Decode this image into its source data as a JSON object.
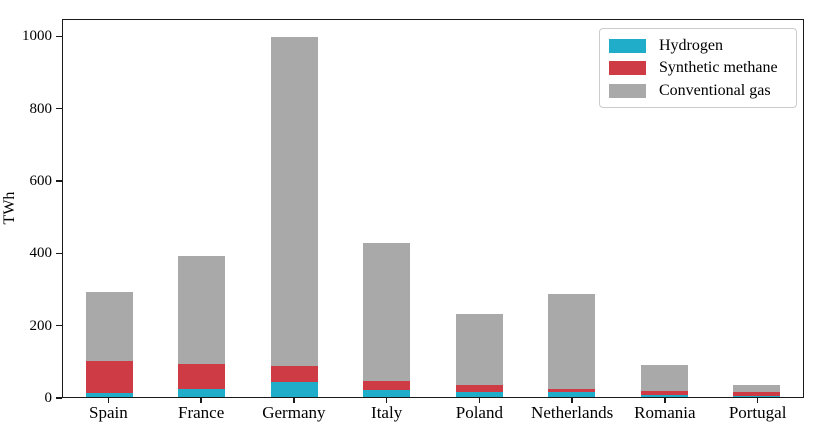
{
  "chart_data": {
    "type": "bar",
    "stacked": true,
    "title": "",
    "xlabel": "",
    "ylabel": "TWh",
    "categories": [
      "Spain",
      "France",
      "Germany",
      "Italy",
      "Poland",
      "Netherlands",
      "Romania",
      "Portugal"
    ],
    "series": [
      {
        "name": "Hydrogen",
        "color": "#20adc9",
        "values": [
          12,
          23,
          42,
          20,
          15,
          15,
          5,
          2
        ]
      },
      {
        "name": "Synthetic methane",
        "color": "#ce3b44",
        "values": [
          88,
          68,
          45,
          25,
          18,
          8,
          13,
          12
        ]
      },
      {
        "name": "Conventional gas",
        "color": "#a9a9a9",
        "values": [
          190,
          300,
          908,
          380,
          197,
          262,
          70,
          18
        ]
      }
    ],
    "totals": [
      290,
      391,
      995,
      425,
      230,
      285,
      88,
      32
    ],
    "yticks": [
      0,
      200,
      400,
      600,
      800,
      1000
    ],
    "ylim": [
      0,
      1048
    ],
    "grid": false,
    "legend_position": "upper right",
    "spine_color": "#1a1a1a",
    "background_color": "#ffffff"
  }
}
